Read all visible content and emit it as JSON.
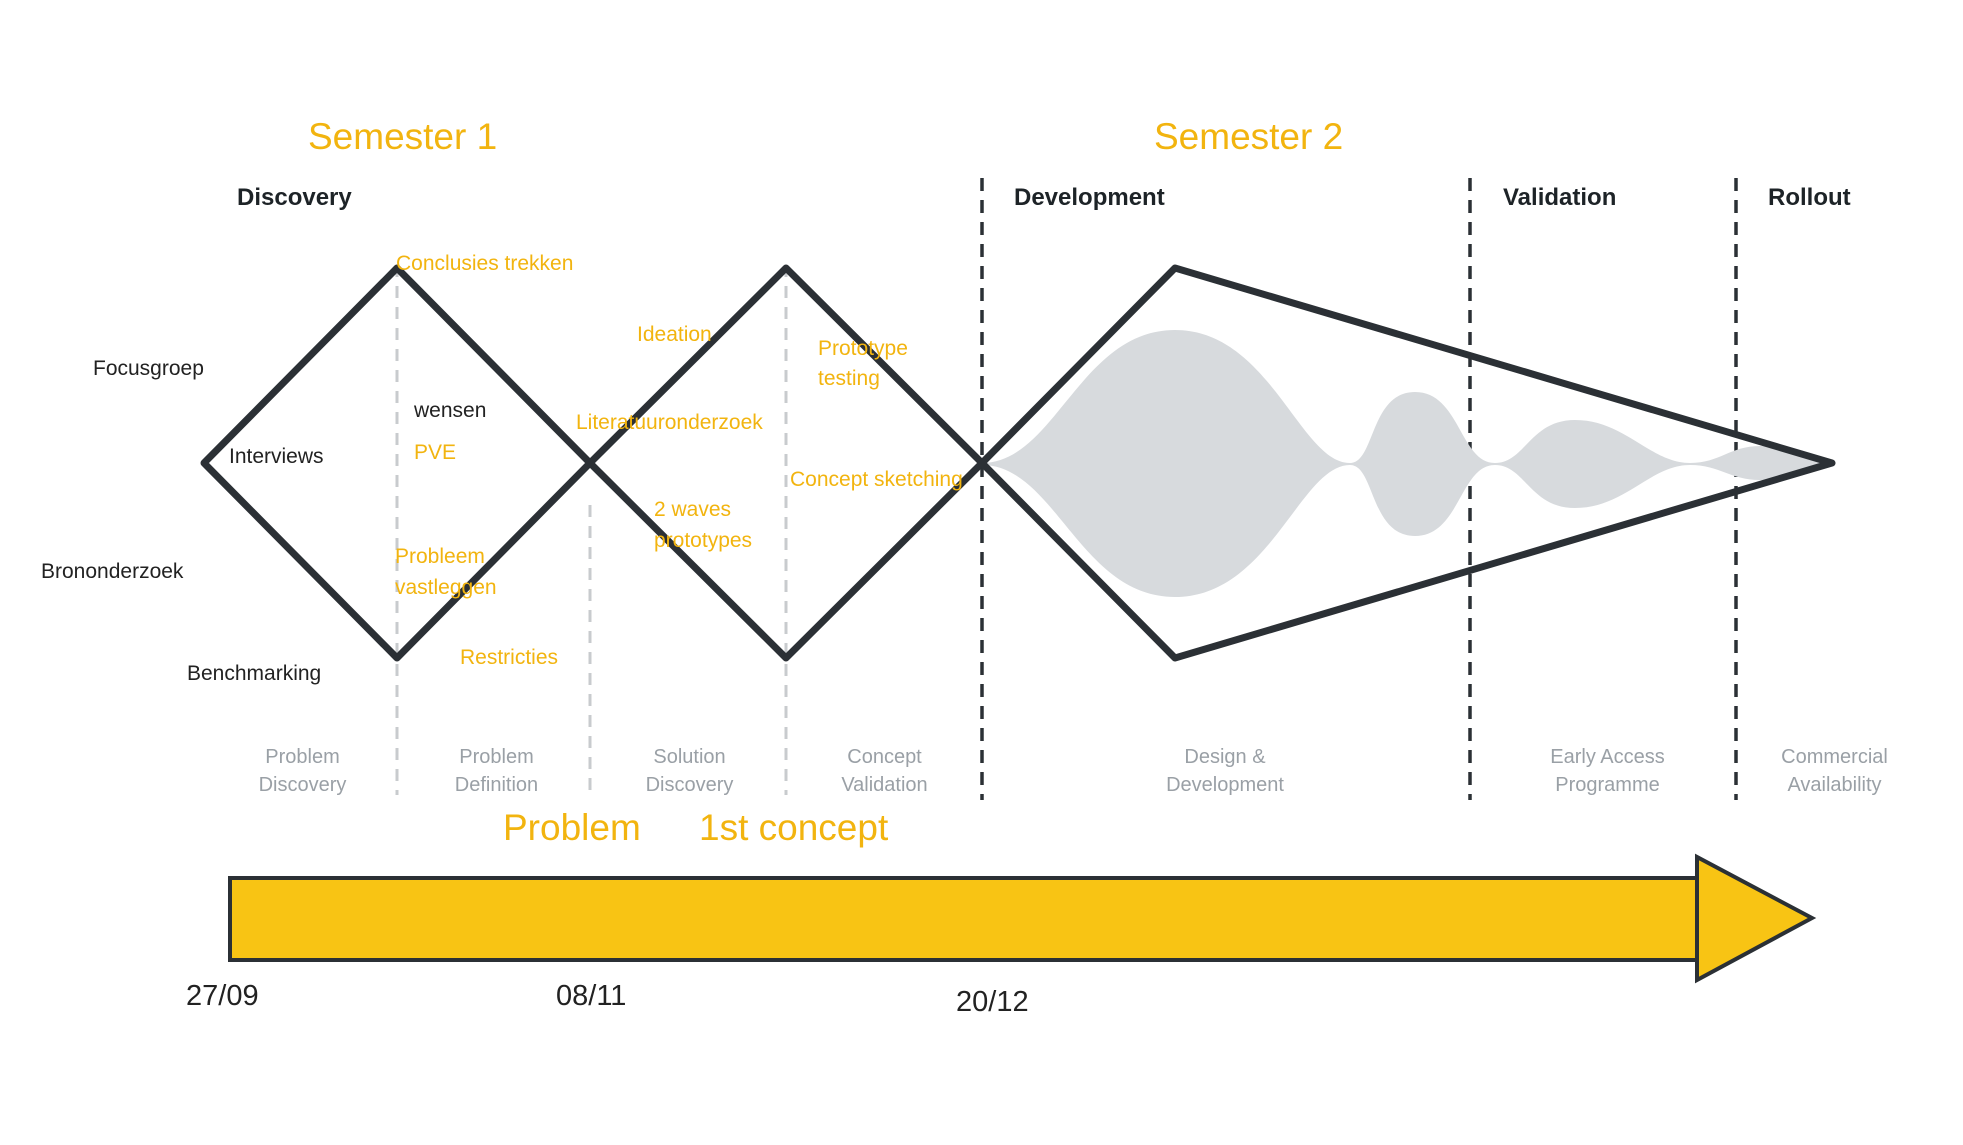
{
  "colors": {
    "accent": "#f2b40f",
    "arrow_fill": "#f8c414",
    "outline": "#2b3035",
    "blob": "#d7dadd",
    "stage_text": "#9aa0a6",
    "guide_line": "#c8cbce"
  },
  "semesters": [
    "Semester 1",
    "Semester 2"
  ],
  "phases": {
    "discovery": "Discovery",
    "development": "Development",
    "validation": "Validation",
    "rollout": "Rollout"
  },
  "methods": {
    "focusgroep": "Focusgroep",
    "bronnen": "Brononderzoek",
    "benchmarking": "Benchmarking"
  },
  "notes": {
    "conclusies": "Conclusies trekken",
    "interviews": "Interviews",
    "wensen": "wensen",
    "pve": "PVE",
    "probleem1": "Probleem",
    "probleem2": "vastleggen",
    "restricties": "Restricties",
    "ideation": "Ideation",
    "literatuur": "Literatuuronderzoek",
    "waves1": "2 waves",
    "waves2": "prototypes",
    "prototype1": "Prototype",
    "prototype2": "testing",
    "concept_sketching": "Concept sketching"
  },
  "stages": [
    [
      "Problem",
      "Discovery"
    ],
    [
      "Problem",
      "Definition"
    ],
    [
      "Solution",
      "Discovery"
    ],
    [
      "Concept",
      "Validation"
    ],
    [
      "Design &",
      "Development"
    ],
    [
      "Early Access",
      "Programme"
    ],
    [
      "Commercial",
      "Availability"
    ]
  ],
  "milestones": [
    "Problem",
    "1st concept"
  ],
  "dates": [
    "27/09",
    "08/11",
    "20/12"
  ]
}
